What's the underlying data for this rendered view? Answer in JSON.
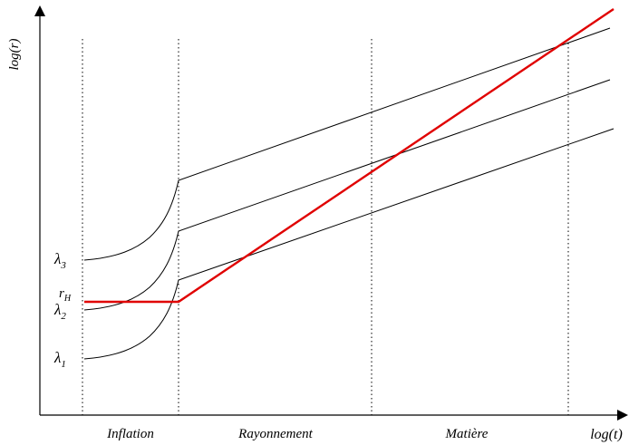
{
  "axes": {
    "y_label": "log(r)",
    "x_label": "log(t)"
  },
  "regions": [
    {
      "id": "inflation",
      "label": "Inflation"
    },
    {
      "id": "rayonnement",
      "label": "Rayonnement"
    },
    {
      "id": "matiere",
      "label": "Matière"
    }
  ],
  "scales": [
    {
      "id": "lambda3",
      "label": "λ",
      "subscript": "3"
    },
    {
      "id": "lambda2",
      "label": "λ",
      "subscript": "2"
    },
    {
      "id": "lambda1",
      "label": "λ",
      "subscript": "1"
    }
  ],
  "horizon": {
    "label": "r",
    "subscript": "H",
    "color": "#e00000"
  },
  "colors": {
    "curve": "#000000",
    "horizon": "#e00000",
    "divider": "#000000"
  }
}
